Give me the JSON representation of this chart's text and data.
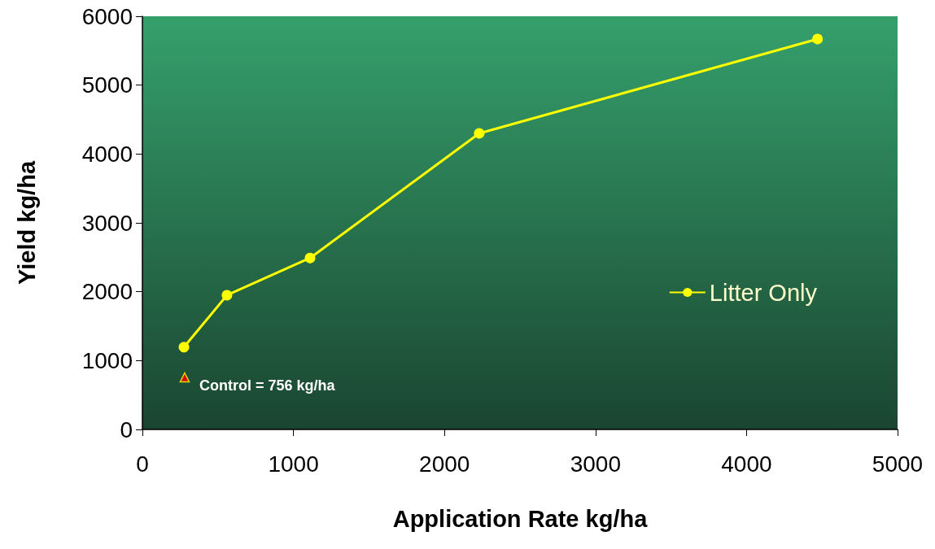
{
  "chart_data": {
    "type": "line",
    "xlabel": "Application Rate kg/ha",
    "ylabel": "Yield kg/ha",
    "xlim": [
      0,
      5000
    ],
    "xticks": [
      0,
      1000,
      2000,
      3000,
      4000,
      5000
    ],
    "ylim": [
      0,
      6000
    ],
    "yticks": [
      0,
      1000,
      2000,
      3000,
      4000,
      5000,
      6000
    ],
    "grid": false,
    "legend": "right",
    "marker": "circle",
    "series": [
      {
        "name": "Litter Only",
        "color": "#ffff00",
        "x": [
          275,
          560,
          1110,
          2230,
          4470
        ],
        "values": [
          1195,
          1950,
          2490,
          4300,
          5670
        ]
      },
      {
        "type": "scatter",
        "marker": "triangle",
        "color": "#ff0000",
        "x": [
          280
        ],
        "values": [
          756
        ]
      }
    ],
    "annotations": [
      {
        "text": "Control = 756 kg/ha",
        "x": 280,
        "y": 756
      }
    ]
  }
}
